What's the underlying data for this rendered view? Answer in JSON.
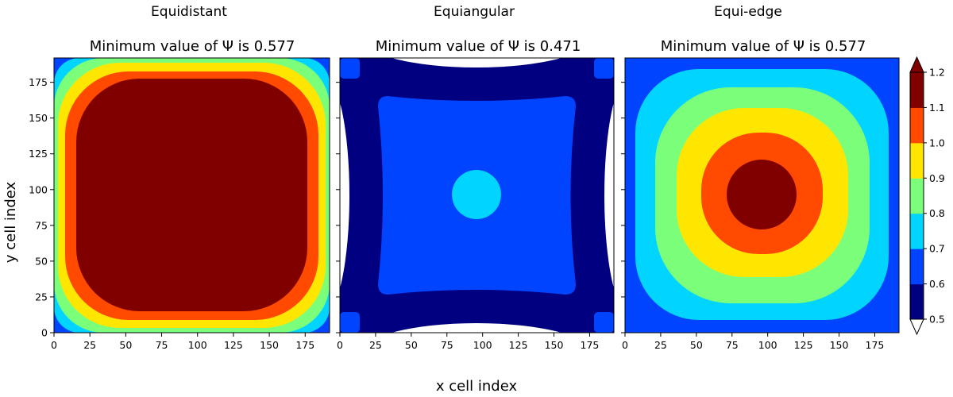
{
  "chart_data": {
    "type": "heatmap",
    "xlabel": "x cell index",
    "ylabel": "y cell index",
    "grid_size": 192,
    "xlim": [
      0,
      192
    ],
    "ylim": [
      0,
      192
    ],
    "x_ticks": [
      0,
      25,
      50,
      75,
      100,
      125,
      150,
      175
    ],
    "y_ticks": [
      0,
      25,
      50,
      75,
      100,
      125,
      150,
      175
    ],
    "panels": [
      {
        "name": "Equidistant",
        "title": "Minimum value of Ψ is 0.577",
        "min_value": 0.577,
        "bands": [
          {
            "level_range": [
              0.6,
              0.7
            ],
            "region": "corners"
          },
          {
            "level_range": [
              0.7,
              0.8
            ],
            "region": "outer ring"
          },
          {
            "level_range": [
              0.8,
              0.9
            ],
            "region": "ring"
          },
          {
            "level_range": [
              0.9,
              1.0
            ],
            "region": "ring"
          },
          {
            "level_range": [
              1.0,
              1.1
            ],
            "region": "ring"
          },
          {
            "level_range": [
              1.1,
              1.2
            ],
            "region": "large central rounded square"
          }
        ]
      },
      {
        "name": "Equiangular",
        "title": "Minimum value of Ψ is 0.471",
        "min_value": 0.471,
        "bands": [
          {
            "level_range": [
              0.0,
              0.5
            ],
            "region": "edge-midpoint lenses (below colour range)"
          },
          {
            "level_range": [
              0.5,
              0.6
            ],
            "region": "background"
          },
          {
            "level_range": [
              0.6,
              0.7
            ],
            "region": "central concave square and corner patches"
          },
          {
            "level_range": [
              0.7,
              0.8
            ],
            "region": "small central disk"
          }
        ]
      },
      {
        "name": "Equi-edge",
        "title": "Minimum value of Ψ is 0.577",
        "min_value": 0.577,
        "bands": [
          {
            "level_range": [
              0.6,
              0.7
            ],
            "region": "outer frame"
          },
          {
            "level_range": [
              0.7,
              0.8
            ],
            "region": "ring"
          },
          {
            "level_range": [
              0.8,
              0.9
            ],
            "region": "ring"
          },
          {
            "level_range": [
              0.9,
              1.0
            ],
            "region": "ring"
          },
          {
            "level_range": [
              1.0,
              1.1
            ],
            "region": "ring"
          },
          {
            "level_range": [
              1.1,
              1.2
            ],
            "region": "central disk"
          }
        ]
      }
    ],
    "colorbar": {
      "levels": [
        0.5,
        0.6,
        0.7,
        0.8,
        0.9,
        1.0,
        1.1,
        1.2
      ],
      "tick_labels": [
        "0.5",
        "0.6",
        "0.7",
        "0.8",
        "0.9",
        "1.0",
        "1.1",
        "1.2"
      ],
      "colors": [
        "#000080",
        "#0044ff",
        "#00d4ff",
        "#7bff7b",
        "#ffe600",
        "#ff4a00",
        "#800000"
      ],
      "under_color": "#ffffff",
      "over_color": "#800000",
      "extend": "both"
    }
  }
}
